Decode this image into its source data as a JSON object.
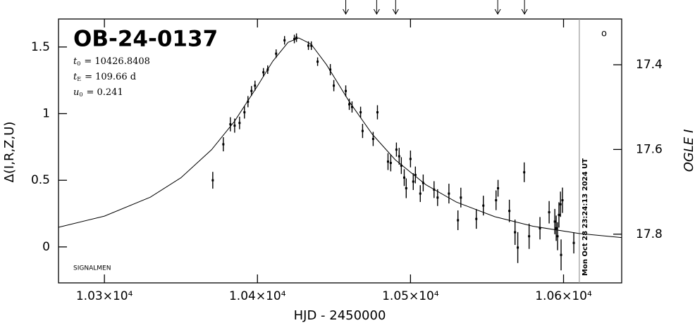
{
  "chart_data": {
    "type": "scatter",
    "title": "OB-24-0137",
    "parameters": [
      {
        "symbol": "t",
        "subscript": "0",
        "text": "= 10426.8408"
      },
      {
        "symbol": "t",
        "subscript": "E",
        "text": "= 109.66 d"
      },
      {
        "symbol": "u",
        "subscript": "0",
        "text": "= 0.241"
      }
    ],
    "x_label": "HJD - 2450000",
    "y_label": "Δ(I,R,Z,U)",
    "y2_label": "OGLE I",
    "footer_text": "SIGNALMEN",
    "corner_symbol": "o",
    "color": "#000000",
    "x": [
      10370.8,
      10377.7,
      10382.3,
      10385.1,
      10388.3,
      10391.5,
      10393.8,
      10396.1,
      10398.4,
      10403.9,
      10406.7,
      10412.2,
      10417.7,
      10424.1,
      10425.5,
      10433.3,
      10435.2,
      10439.3,
      10447.6,
      10449.9,
      10457.7,
      10460.0,
      10461.8,
      10467.4,
      10468.7,
      10475.6,
      10478.4,
      10485.3,
      10487.1,
      10490.8,
      10492.6,
      10494.0,
      10495.9,
      10497.2,
      10500.0,
      10501.8,
      10503.2,
      10506.4,
      10508.3,
      10515.4,
      10517.7,
      10525.1,
      10531.0,
      10532.9,
      10543.0,
      10547.6,
      10555.9,
      10557.2,
      10564.6,
      10568.3,
      10570.1,
      10574.3,
      10577.5,
      10584.6,
      10590.6,
      10594.3,
      10595.2,
      10596.1,
      10597.0,
      10598.0,
      10598.4,
      10599.3,
      10606.7
    ],
    "values": [
      0.5,
      0.77,
      0.92,
      0.91,
      0.93,
      1.01,
      1.09,
      1.17,
      1.21,
      1.31,
      1.33,
      1.45,
      1.55,
      1.56,
      1.57,
      1.51,
      1.51,
      1.39,
      1.33,
      1.21,
      1.17,
      1.07,
      1.05,
      1.01,
      0.87,
      0.81,
      1.01,
      0.64,
      0.63,
      0.73,
      0.68,
      0.61,
      0.52,
      0.44,
      0.66,
      0.49,
      0.54,
      0.4,
      0.48,
      0.43,
      0.37,
      0.4,
      0.2,
      0.37,
      0.21,
      0.31,
      0.35,
      0.44,
      0.27,
      0.11,
      -0.005,
      0.56,
      0.08,
      0.14,
      0.26,
      0.19,
      0.14,
      0.08,
      0.24,
      0.32,
      -0.06,
      0.35,
      0.03
    ],
    "errors": [
      0.063,
      0.053,
      0.053,
      0.053,
      0.047,
      0.047,
      0.042,
      0.037,
      0.037,
      0.032,
      0.032,
      0.032,
      0.032,
      0.032,
      0.032,
      0.032,
      0.032,
      0.032,
      0.042,
      0.042,
      0.042,
      0.042,
      0.042,
      0.042,
      0.053,
      0.053,
      0.053,
      0.063,
      0.063,
      0.053,
      0.063,
      0.063,
      0.063,
      0.074,
      0.063,
      0.063,
      0.063,
      0.063,
      0.063,
      0.063,
      0.063,
      0.074,
      0.074,
      0.074,
      0.074,
      0.074,
      0.074,
      0.063,
      0.084,
      0.095,
      0.116,
      0.074,
      0.095,
      0.084,
      0.084,
      0.095,
      0.095,
      0.105,
      0.095,
      0.095,
      0.116,
      0.095,
      0.079
    ],
    "model": {
      "x": [
        10270,
        10300,
        10330,
        10350,
        10370,
        10385,
        10400,
        10410,
        10420,
        10427,
        10435,
        10445,
        10460,
        10475,
        10490,
        10510,
        10530,
        10555,
        10580,
        10610,
        10638
      ],
      "values": [
        0.147,
        0.231,
        0.373,
        0.519,
        0.729,
        0.942,
        1.207,
        1.393,
        1.535,
        1.568,
        1.522,
        1.369,
        1.09,
        0.846,
        0.654,
        0.467,
        0.336,
        0.227,
        0.155,
        0.101,
        0.07
      ]
    },
    "now_x": 10610.3,
    "now_label": "Mon Oct 28 23:24:13 2024 UT",
    "arrows_x": [
      10457.7,
      10477.9,
      10490.3,
      10557.0,
      10574.5
    ],
    "xlim": [
      10270,
      10638
    ],
    "ylim": [
      -0.27,
      1.71
    ],
    "y2lim": [
      17.292,
      17.915
    ],
    "xticks": [
      {
        "value": 10300,
        "label": "1.03×10⁴"
      },
      {
        "value": 10400,
        "label": "1.04×10⁴"
      },
      {
        "value": 10500,
        "label": "1.05×10⁴"
      },
      {
        "value": 10600,
        "label": "1.06×10⁴"
      }
    ],
    "yticks": [
      0,
      0.5,
      1,
      1.5
    ],
    "y2ticks": [
      17.4,
      17.6,
      17.8
    ]
  }
}
